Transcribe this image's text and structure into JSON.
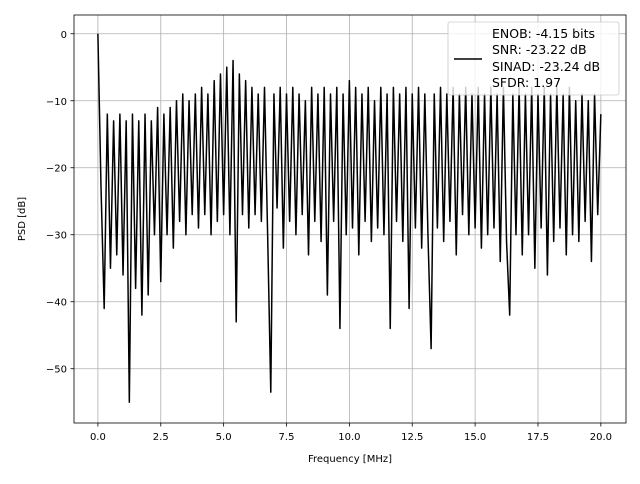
{
  "chart_data": {
    "type": "line",
    "title": "",
    "xlabel": "Frequency [MHz]",
    "ylabel": "PSD [dB]",
    "xlim": [
      -0.95,
      21.0
    ],
    "ylim": [
      -58.1,
      2.8
    ],
    "grid": true,
    "xticks": [
      0.0,
      2.5,
      5.0,
      7.5,
      10.0,
      12.5,
      15.0,
      17.5,
      20.0
    ],
    "xtick_labels": [
      "0.0",
      "2.5",
      "5.0",
      "7.5",
      "10.0",
      "12.5",
      "15.0",
      "17.5",
      "20.0"
    ],
    "yticks": [
      0,
      -10,
      -20,
      -30,
      -40,
      -50
    ],
    "ytick_labels": [
      "0",
      "−10",
      "−20",
      "−30",
      "−40",
      "−50"
    ],
    "legend": {
      "placement": "top-right",
      "lines": [
        "ENOB: -4.15 bits",
        "SNR: -23.22 dB",
        "SINAD: -23.24 dB",
        "SFDR: 1.97"
      ]
    },
    "series": [
      {
        "name": "PSD",
        "color": "#000000",
        "x_start": 0,
        "x_step": 0.125,
        "values": [
          0,
          -23,
          -41,
          -12,
          -35,
          -13,
          -33,
          -12,
          -36,
          -13,
          -55,
          -12,
          -38,
          -13,
          -42,
          -12,
          -39,
          -13,
          -30,
          -11,
          -37,
          -12,
          -30,
          -11,
          -32,
          -10,
          -28,
          -9,
          -30,
          -10,
          -27,
          -9,
          -29,
          -8,
          -27,
          -9,
          -30,
          -7,
          -28,
          -6,
          -27,
          -5,
          -30,
          -4,
          -43,
          -6,
          -27,
          -7,
          -29,
          -8,
          -27,
          -9,
          -28,
          -8,
          -30,
          -53.5,
          -9,
          -26,
          -8,
          -32,
          -9,
          -28,
          -8,
          -30,
          -9,
          -27,
          -10,
          -33,
          -8,
          -28,
          -9,
          -31,
          -8,
          -39,
          -9,
          -28,
          -8,
          -44,
          -9,
          -30,
          -7,
          -29,
          -8,
          -33,
          -9,
          -28,
          -8,
          -31,
          -10,
          -29,
          -8,
          -30,
          -9,
          -44,
          -8,
          -28,
          -9,
          -31,
          -8,
          -41,
          -9,
          -29,
          -8,
          -32,
          -9,
          -30,
          -47,
          -9,
          -29,
          -8,
          -31,
          -9,
          -28,
          -8,
          -33,
          -9,
          -27,
          -8,
          -30,
          -9,
          -29,
          -8,
          -32,
          -9,
          -30,
          -8,
          -29,
          -9,
          -34,
          -8,
          -31,
          -42,
          -9,
          -30,
          -8,
          -33,
          -9,
          -30,
          -8,
          -35,
          -9,
          -29,
          -8,
          -36,
          -9,
          -31,
          -8,
          -29,
          -9,
          -33,
          -8,
          -30,
          -10,
          -31,
          -9,
          -28,
          -10,
          -34,
          -9,
          -27,
          -12
        ]
      }
    ]
  }
}
